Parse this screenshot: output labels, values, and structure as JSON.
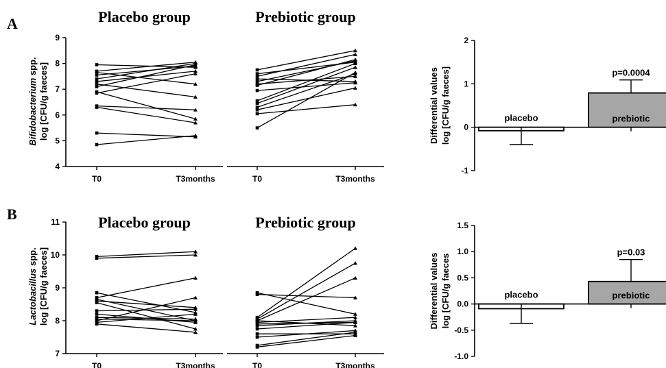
{
  "panels": {
    "A": {
      "letter": "A",
      "ylabel_genus": "Bifidobacterium",
      "ylabel_suffix": " spp.",
      "ylabel_line2": "log [CFU/g faeces]"
    },
    "B": {
      "letter": "B",
      "ylabel_genus": "Lactobacillus",
      "ylabel_suffix": " spp.",
      "ylabel_line2": "log [CFU/g faeces]"
    }
  },
  "chart_data": [
    {
      "id": "A-placebo",
      "type": "line",
      "title": "Placebo group",
      "x": [
        "T0",
        "T3months"
      ],
      "ylim": [
        4,
        9
      ],
      "yticks": [
        4,
        5,
        6,
        7,
        8,
        9
      ],
      "series": [
        {
          "values": [
            7.95,
            7.85
          ]
        },
        {
          "values": [
            7.7,
            8.05
          ]
        },
        {
          "values": [
            7.65,
            7.2
          ]
        },
        {
          "values": [
            7.55,
            7.9
          ]
        },
        {
          "values": [
            7.4,
            8.0
          ]
        },
        {
          "values": [
            7.3,
            7.7
          ]
        },
        {
          "values": [
            7.2,
            6.7
          ]
        },
        {
          "values": [
            7.1,
            7.95
          ]
        },
        {
          "values": [
            6.9,
            5.85
          ]
        },
        {
          "values": [
            6.85,
            7.6
          ]
        },
        {
          "values": [
            6.35,
            6.2
          ]
        },
        {
          "values": [
            6.3,
            5.7
          ]
        },
        {
          "values": [
            5.3,
            5.15
          ]
        },
        {
          "values": [
            4.85,
            5.2
          ]
        }
      ]
    },
    {
      "id": "A-prebiotic",
      "type": "line",
      "title": "Prebiotic group",
      "x": [
        "T0",
        "T3months"
      ],
      "ylim": [
        4,
        9
      ],
      "series": [
        {
          "values": [
            7.75,
            8.5
          ]
        },
        {
          "values": [
            7.6,
            8.05
          ]
        },
        {
          "values": [
            7.5,
            8.35
          ]
        },
        {
          "values": [
            7.4,
            7.3
          ]
        },
        {
          "values": [
            7.3,
            8.1
          ]
        },
        {
          "values": [
            7.2,
            7.5
          ]
        },
        {
          "values": [
            7.15,
            8.15
          ]
        },
        {
          "values": [
            6.95,
            7.25
          ]
        },
        {
          "values": [
            6.55,
            8.0
          ]
        },
        {
          "values": [
            6.45,
            7.85
          ]
        },
        {
          "values": [
            6.3,
            7.6
          ]
        },
        {
          "values": [
            6.2,
            7.05
          ]
        },
        {
          "values": [
            6.05,
            6.4
          ]
        },
        {
          "values": [
            5.5,
            7.65
          ]
        }
      ]
    },
    {
      "id": "A-diff",
      "type": "bar",
      "categories": [
        "placebo",
        "prebiotic"
      ],
      "values": [
        -0.08,
        0.79
      ],
      "errors": [
        0.32,
        0.3
      ],
      "annotations": [
        "",
        "p=0.0004"
      ],
      "ylabel_line1": "Differential values",
      "ylabel_line2": "log [CFU/g faeces]",
      "ylim": [
        -1,
        2
      ],
      "yticks": [
        -1,
        0,
        1,
        2
      ]
    },
    {
      "id": "B-placebo",
      "type": "line",
      "title": "Placebo group",
      "x": [
        "T0",
        "T3months"
      ],
      "ylim": [
        7,
        11
      ],
      "yticks": [
        7,
        8,
        9,
        10,
        11
      ],
      "series": [
        {
          "values": [
            9.95,
            10.1
          ]
        },
        {
          "values": [
            9.9,
            10.0
          ]
        },
        {
          "values": [
            8.85,
            8.25
          ]
        },
        {
          "values": [
            8.7,
            9.3
          ]
        },
        {
          "values": [
            8.65,
            8.0
          ]
        },
        {
          "values": [
            8.6,
            8.4
          ]
        },
        {
          "values": [
            8.55,
            7.75
          ]
        },
        {
          "values": [
            8.3,
            8.35
          ]
        },
        {
          "values": [
            8.2,
            7.95
          ]
        },
        {
          "values": [
            8.1,
            8.05
          ]
        },
        {
          "values": [
            8.0,
            8.7
          ]
        },
        {
          "values": [
            7.95,
            8.2
          ]
        },
        {
          "values": [
            7.9,
            7.65
          ]
        },
        {
          "values": [
            8.05,
            8.0
          ]
        }
      ]
    },
    {
      "id": "B-prebiotic",
      "type": "line",
      "title": "Prebiotic group",
      "x": [
        "T0",
        "T3months"
      ],
      "ylim": [
        7,
        11
      ],
      "series": [
        {
          "values": [
            8.85,
            8.2
          ]
        },
        {
          "values": [
            8.8,
            8.7
          ]
        },
        {
          "values": [
            8.1,
            10.2
          ]
        },
        {
          "values": [
            8.05,
            9.75
          ]
        },
        {
          "values": [
            8.0,
            9.3
          ]
        },
        {
          "values": [
            7.95,
            8.1
          ]
        },
        {
          "values": [
            7.9,
            7.95
          ]
        },
        {
          "values": [
            8.0,
            7.85
          ]
        },
        {
          "values": [
            7.85,
            8.0
          ]
        },
        {
          "values": [
            7.75,
            7.95
          ]
        },
        {
          "values": [
            7.6,
            7.6
          ]
        },
        {
          "values": [
            7.5,
            7.7
          ]
        },
        {
          "values": [
            7.25,
            7.65
          ]
        },
        {
          "values": [
            7.2,
            7.55
          ]
        }
      ]
    },
    {
      "id": "B-diff",
      "type": "bar",
      "categories": [
        "placebo",
        "prebiotic"
      ],
      "values": [
        -0.09,
        0.43
      ],
      "errors": [
        0.28,
        0.42
      ],
      "annotations": [
        "",
        "p=0.03"
      ],
      "ylabel_line1": "Differential values",
      "ylabel_line2": "log [CFU/g faeces",
      "ylim": [
        -1.0,
        1.5
      ],
      "yticks": [
        -1.0,
        -0.5,
        0.0,
        0.5,
        1.0,
        1.5
      ]
    }
  ],
  "colors": {
    "line": "#000000",
    "bar_placebo": "#ffffff",
    "bar_prebiotic": "#a6a6a6"
  }
}
